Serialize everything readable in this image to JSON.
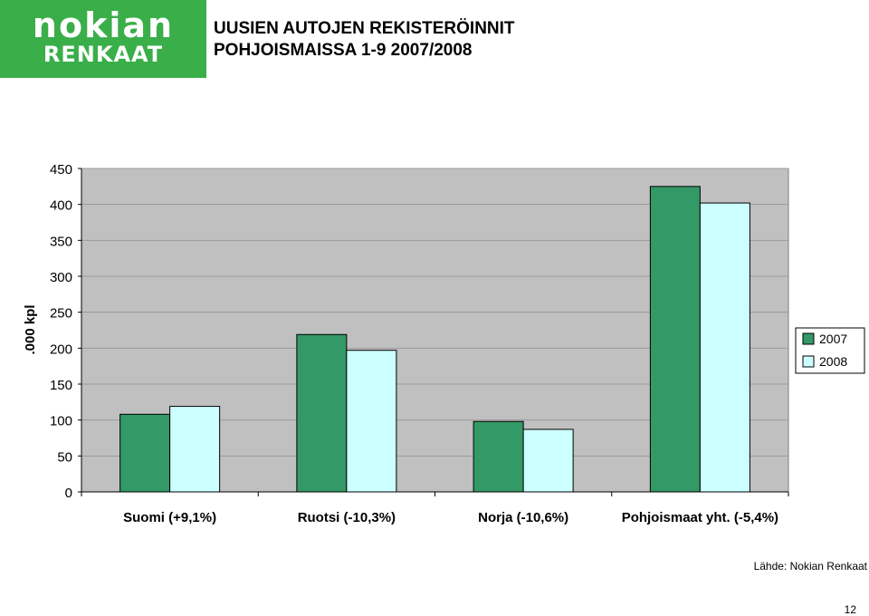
{
  "logo": {
    "line1": "nokian",
    "line2": "RENKAAT"
  },
  "title": {
    "line1": "UUSIEN AUTOJEN REKISTERÖINNIT",
    "line2": "POHJOISMAISSA 1-9 2007/2008"
  },
  "source": "Lähde: Nokian Renkaat",
  "page_number": "12",
  "colors": {
    "plot_bg": "#c0c0c0",
    "series_2007": "#339966",
    "series_2008": "#ccffff",
    "grid": "#9a9a9a"
  },
  "chart_data": {
    "type": "bar",
    "ylabel": ".000 kpl",
    "xlabel": "",
    "ylim": [
      0,
      450
    ],
    "yticks": [
      0,
      50,
      100,
      150,
      200,
      250,
      300,
      350,
      400,
      450
    ],
    "grid": true,
    "legend_position": "right",
    "categories": [
      "Suomi (+9,1%)",
      "Ruotsi (-10,3%)",
      "Norja (-10,6%)",
      "Pohjoismaat yht.  (-5,4%)"
    ],
    "series": [
      {
        "name": "2007",
        "values": [
          108,
          219,
          98,
          425
        ]
      },
      {
        "name": "2008",
        "values": [
          119,
          197,
          87,
          402
        ]
      }
    ]
  }
}
